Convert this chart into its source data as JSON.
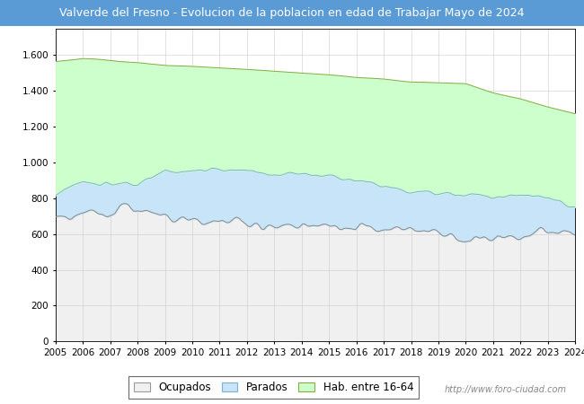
{
  "title": "Valverde del Fresno - Evolucion de la poblacion en edad de Trabajar Mayo de 2024",
  "title_bg_color": "#5B9BD5",
  "title_text_color": "white",
  "ylim": [
    0,
    1750
  ],
  "yticks": [
    0,
    200,
    400,
    600,
    800,
    1000,
    1200,
    1400,
    1600
  ],
  "ytick_labels": [
    "0",
    "200",
    "400",
    "600",
    "800",
    "1.000",
    "1.200",
    "1.400",
    "1.600"
  ],
  "years": [
    2005,
    2006,
    2007,
    2008,
    2009,
    2010,
    2011,
    2012,
    2013,
    2014,
    2015,
    2016,
    2017,
    2018,
    2019,
    2020,
    2021,
    2022,
    2023,
    2024
  ],
  "hab_16_64": [
    1565,
    1580,
    1570,
    1560,
    1540,
    1535,
    1530,
    1520,
    1510,
    1500,
    1490,
    1475,
    1465,
    1450,
    1445,
    1440,
    1390,
    1355,
    1310,
    1275
  ],
  "parados": [
    830,
    890,
    880,
    870,
    965,
    960,
    955,
    950,
    940,
    935,
    930,
    905,
    870,
    840,
    830,
    820,
    815,
    815,
    800,
    755
  ],
  "ocupados": [
    680,
    700,
    730,
    745,
    690,
    680,
    670,
    660,
    645,
    640,
    635,
    630,
    625,
    620,
    615,
    570,
    580,
    590,
    610,
    595
  ],
  "color_hab": "#CCFFCC",
  "color_hab_line": "#88AA44",
  "color_parados": "#C8E4F8",
  "color_parados_line": "#7BAFD4",
  "color_ocupados": "#F0F0F0",
  "color_ocupados_line": "#888888",
  "watermark": "http://www.foro-ciudad.com",
  "legend_labels": [
    "Ocupados",
    "Parados",
    "Hab. entre 16-64"
  ],
  "bg_color": "#FFFFFF",
  "plot_bg_color": "#FFFFFF",
  "title_fontsize": 9.0
}
